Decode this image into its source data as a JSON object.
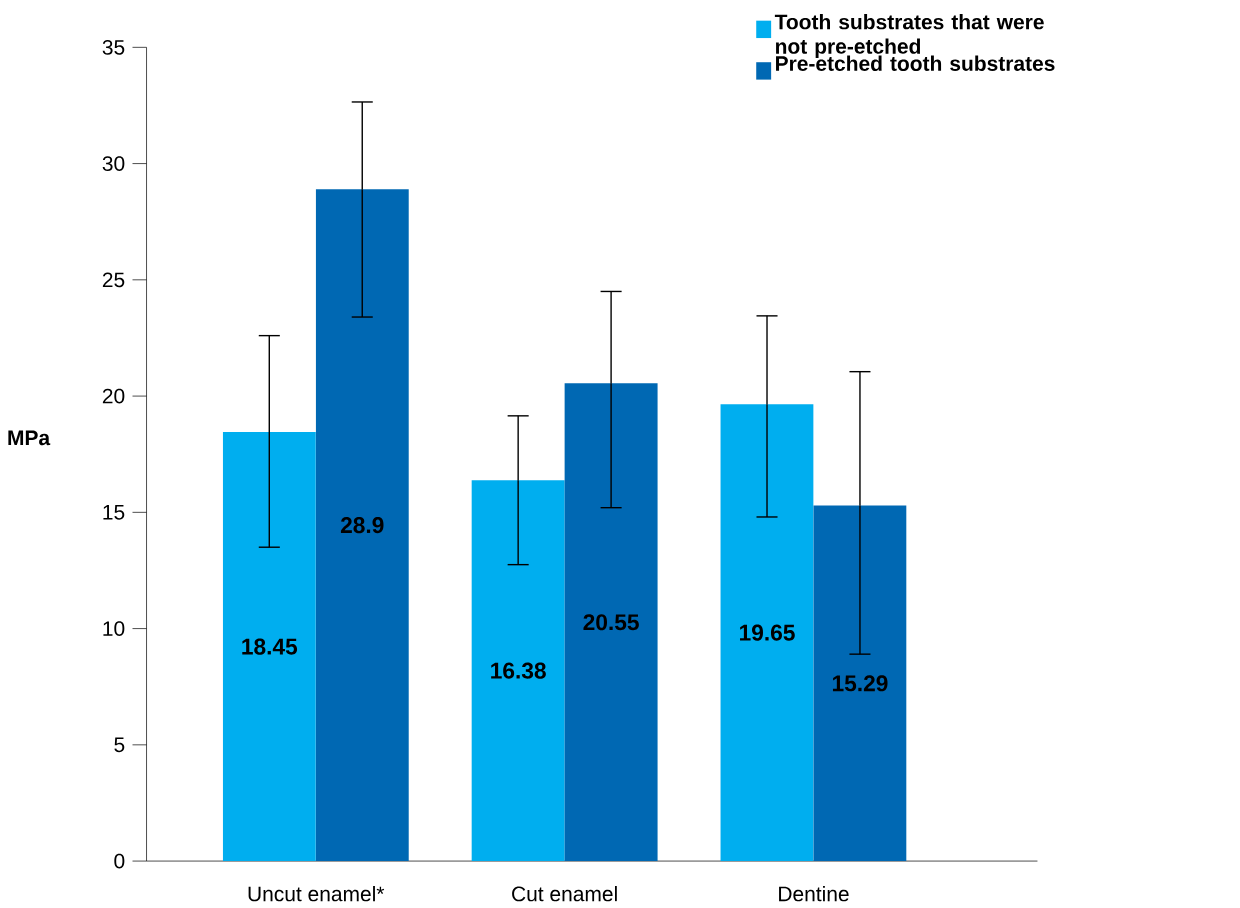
{
  "chart_data": {
    "type": "bar",
    "ylabel": "MPa",
    "categories": [
      "Uncut enamel*",
      "Cut enamel",
      "Dentine"
    ],
    "series": [
      {
        "name": "Tooth substrates that were not pre-etched",
        "color": "#00aeef",
        "values": [
          18.45,
          16.38,
          19.65
        ],
        "errors": [
          [
            13.5,
            22.6
          ],
          [
            12.75,
            19.15
          ],
          [
            14.8,
            23.45
          ]
        ]
      },
      {
        "name": "Pre-etched tooth substrates",
        "color": "#0068b3",
        "values": [
          28.9,
          20.55,
          15.29
        ],
        "errors": [
          [
            23.4,
            32.65
          ],
          [
            15.2,
            24.5
          ],
          [
            8.9,
            21.05
          ]
        ]
      }
    ],
    "ylim": [
      0,
      35
    ],
    "yticks": [
      0,
      5,
      10,
      15,
      20,
      25,
      30,
      35
    ],
    "data_labels": true,
    "legend": "top right",
    "grid": false
  }
}
